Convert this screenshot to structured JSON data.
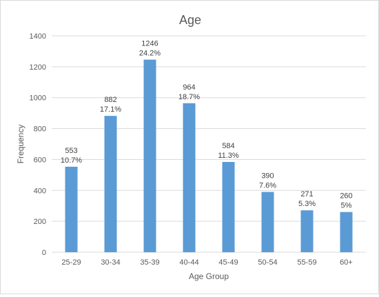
{
  "chart_data": {
    "type": "bar",
    "title": "Age",
    "xlabel": "Age Group",
    "ylabel": "Frequency",
    "categories": [
      "25-29",
      "30-34",
      "35-39",
      "40-44",
      "45-49",
      "50-54",
      "55-59",
      "60+"
    ],
    "values": [
      553,
      882,
      1246,
      964,
      584,
      390,
      271,
      260
    ],
    "percent_labels": [
      "10.7%",
      "17.1%",
      "24.2%",
      "18.7%",
      "11.3%",
      "7.6%",
      "5.3%",
      "5%"
    ],
    "ylim": [
      0,
      1400
    ],
    "yticks": [
      0,
      200,
      400,
      600,
      800,
      1000,
      1200,
      1400
    ],
    "grid": true,
    "legend": "none",
    "colors": {
      "bar": "#5b9bd5",
      "grid": "#d9d9d9",
      "text": "#595959",
      "label": "#404040"
    }
  }
}
